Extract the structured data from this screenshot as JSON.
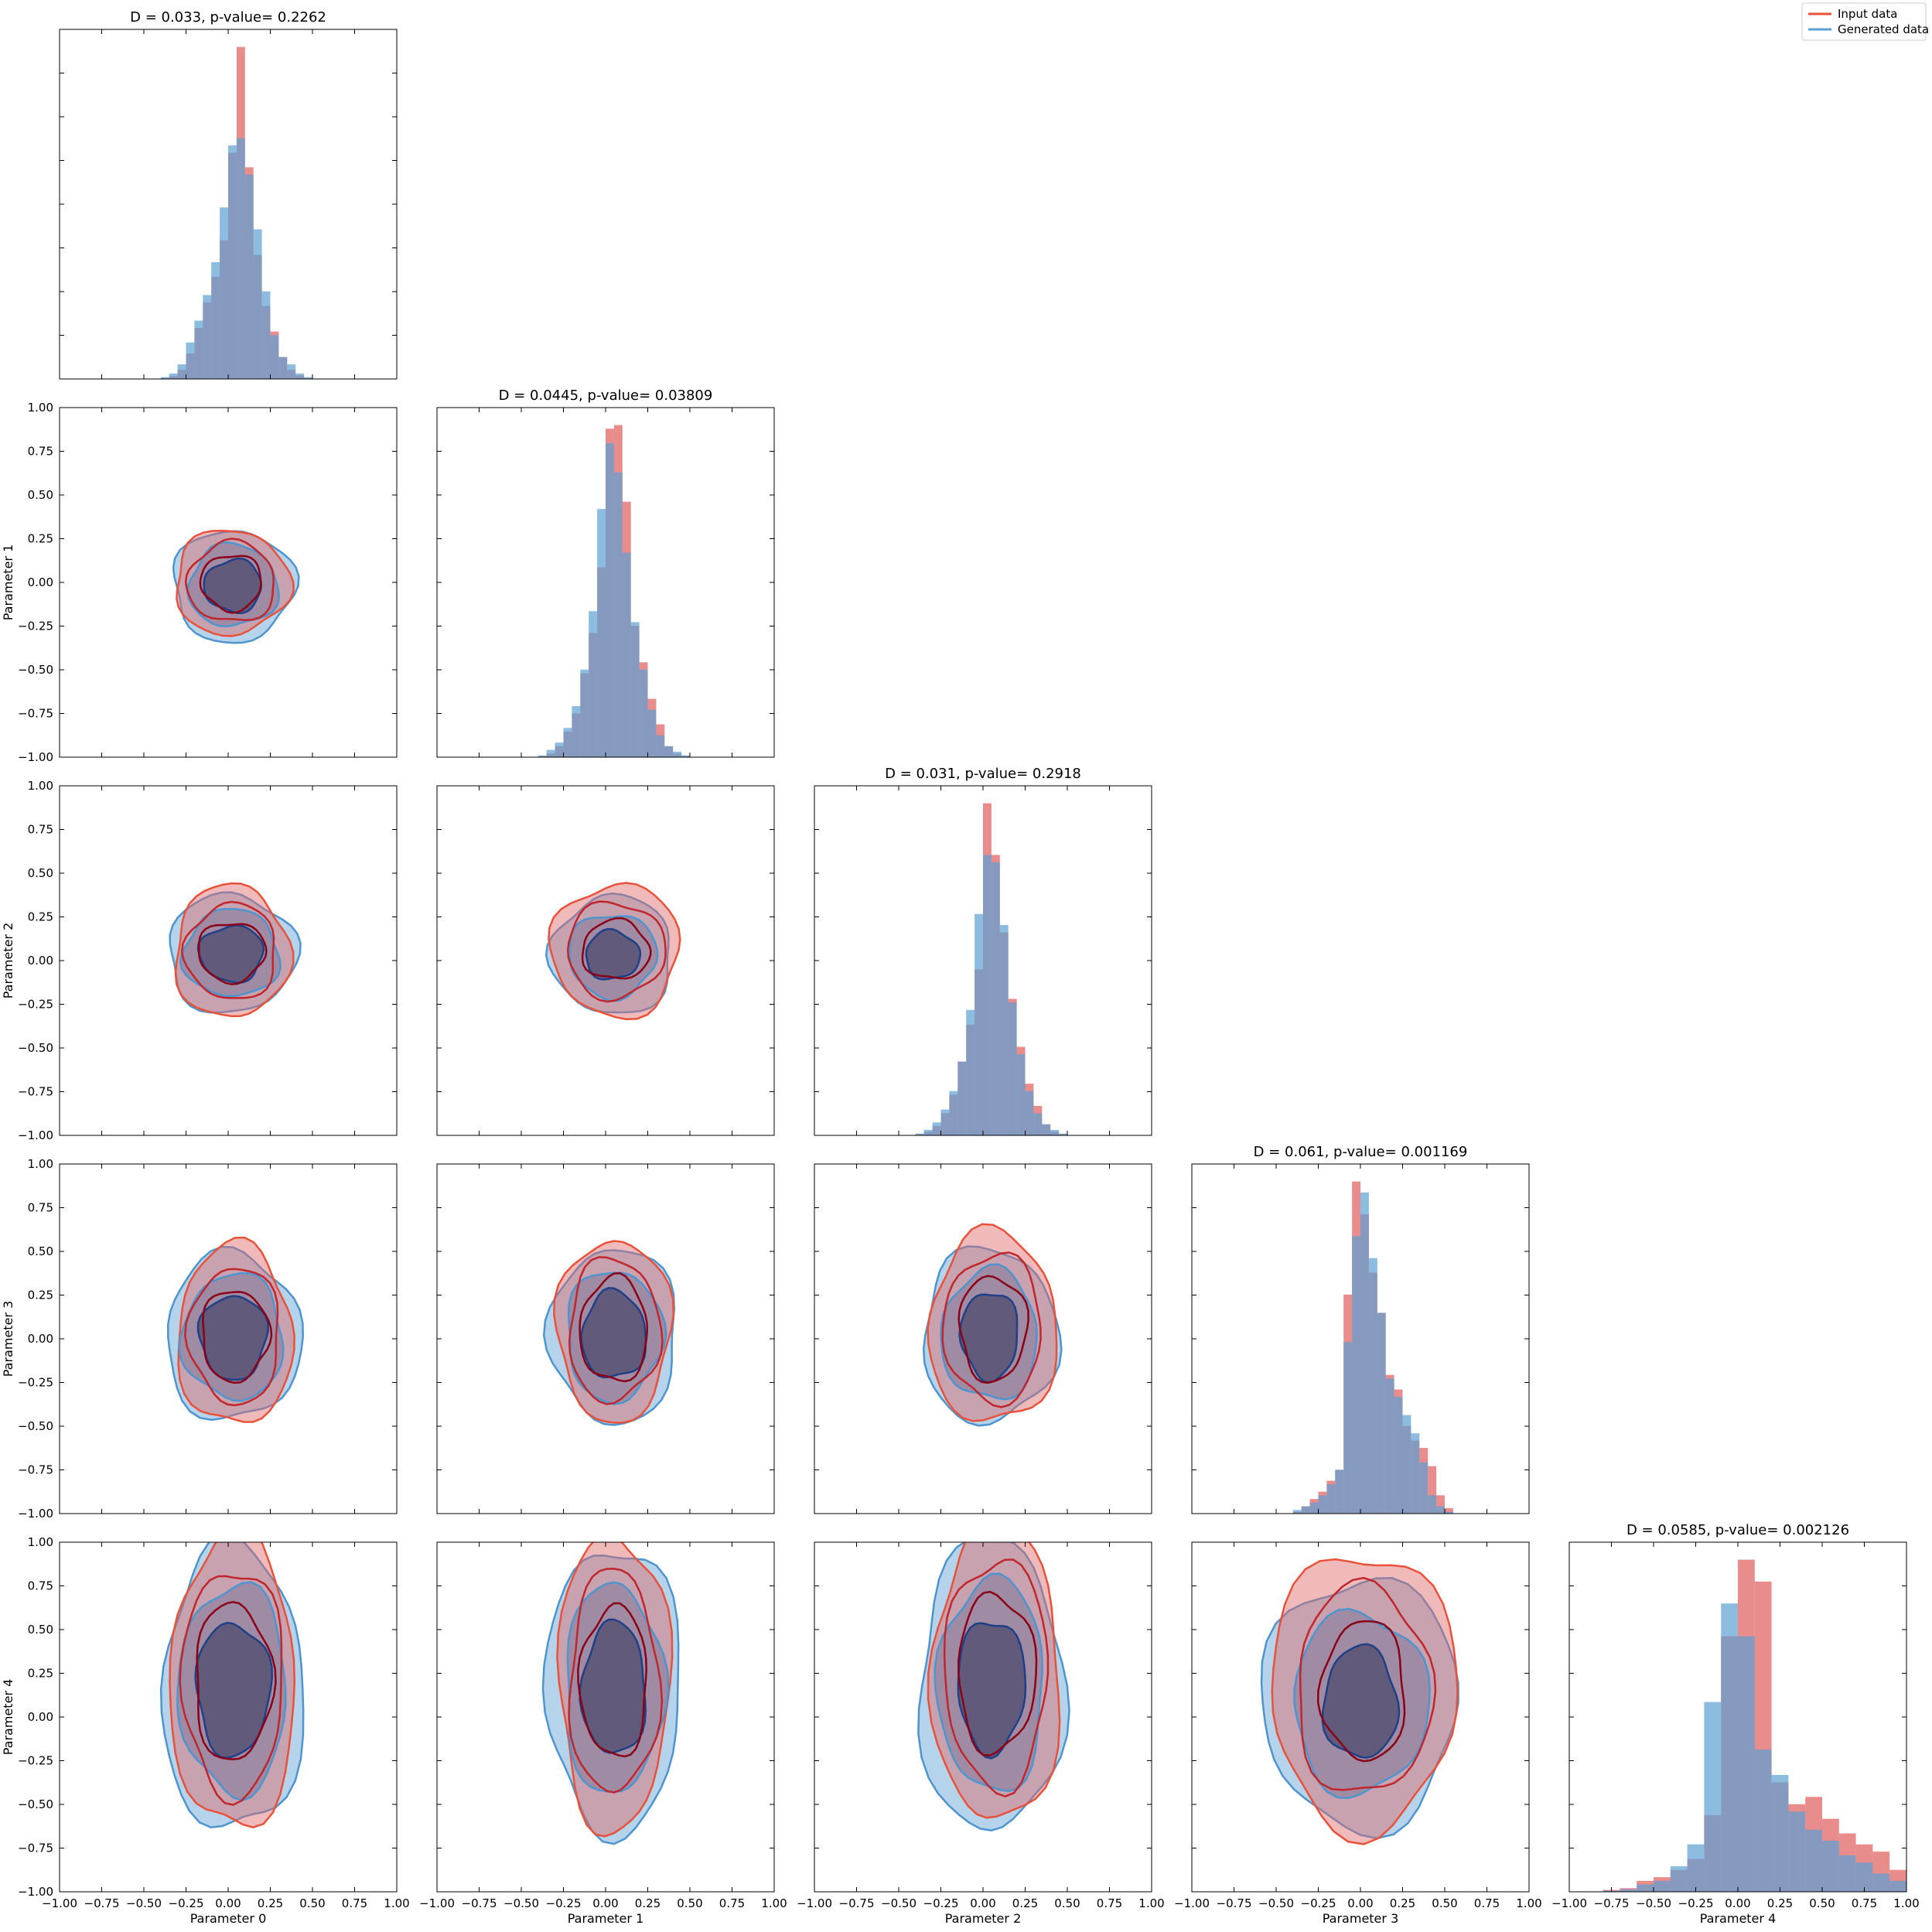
{
  "legend": {
    "placement": "top-right",
    "entries": [
      {
        "label": "Input data",
        "color": "#e8513a"
      },
      {
        "label": "Generated data",
        "color": "#5b9fd3"
      }
    ]
  },
  "colors": {
    "input_fill": "#e06666",
    "generated_fill": "#5b9fd3",
    "overlap_fill": "#847d9c",
    "input_inner_line": "#8b0016",
    "input_outer_line": "#e8513a",
    "generated_inner_line": "#1f3f87",
    "generated_outer_line": "#4e94cf"
  },
  "axes": {
    "range": [
      -1.0,
      1.0
    ],
    "ticks": [
      -1.0,
      -0.75,
      -0.5,
      -0.25,
      0.0,
      0.25,
      0.5,
      0.75,
      1.0
    ],
    "tick_labels": [
      "−1.00",
      "−0.75",
      "−0.50",
      "−0.25",
      "0.00",
      "0.25",
      "0.50",
      "0.75",
      "1.00"
    ],
    "x_labels": [
      "Parameter 0",
      "Parameter 1",
      "Parameter 2",
      "Parameter 3",
      "Parameter 4"
    ],
    "y_labels": [
      "Parameter 1",
      "Parameter 2",
      "Parameter 3",
      "Parameter 4"
    ]
  },
  "chart_data": {
    "type": "corner",
    "parameters": [
      "Parameter 0",
      "Parameter 1",
      "Parameter 2",
      "Parameter 3",
      "Parameter 4"
    ],
    "diagonal": [
      {
        "type": "bar",
        "title": "D = 0.033, p-value= 0.2262",
        "bin_edges": [
          -0.4,
          -0.35,
          -0.3,
          -0.25,
          -0.2,
          -0.15,
          -0.1,
          -0.05,
          0.0,
          0.05,
          0.1,
          0.15,
          0.2,
          0.25,
          0.3,
          0.35,
          0.4,
          0.45,
          0.5
        ],
        "series": [
          {
            "name": "Input data",
            "values": [
              0.3,
              0.8,
              2.5,
              7,
              14,
              21,
              28,
              38,
              62,
              91,
              58,
              34,
              20,
              13,
              6,
              2.5,
              1,
              0.3
            ]
          },
          {
            "name": "Generated data",
            "values": [
              0.5,
              1.5,
              4,
              10,
              16,
              23,
              32,
              47,
              64,
              66,
              56,
              41,
              24,
              12,
              6,
              4,
              1.5,
              0.5
            ]
          }
        ]
      },
      {
        "type": "bar",
        "title": "D = 0.0445, p-value= 0.03809",
        "bin_edges": [
          -0.4,
          -0.35,
          -0.3,
          -0.25,
          -0.2,
          -0.15,
          -0.1,
          -0.05,
          0.0,
          0.05,
          0.1,
          0.15,
          0.2,
          0.25,
          0.3,
          0.35,
          0.4,
          0.45,
          0.5
        ],
        "series": [
          {
            "name": "Input data",
            "values": [
              0.3,
              1,
              3,
              7,
              12,
              23,
              34,
              52,
              90,
              91,
              70,
              36,
              26,
              16,
              9,
              3,
              1,
              0.3
            ]
          },
          {
            "name": "Generated data",
            "values": [
              0.5,
              2,
              4,
              8,
              14,
              24,
              40,
              68,
              86,
              78,
              56,
              37,
              24,
              13,
              6,
              3,
              1.5,
              0.5
            ]
          }
        ]
      },
      {
        "type": "bar",
        "title": "D = 0.031, p-value= 0.2918",
        "bin_edges": [
          -0.4,
          -0.35,
          -0.3,
          -0.25,
          -0.2,
          -0.15,
          -0.1,
          -0.05,
          0.0,
          0.05,
          0.1,
          0.15,
          0.2,
          0.25,
          0.3,
          0.35,
          0.4,
          0.45,
          0.5
        ],
        "series": [
          {
            "name": "Input data",
            "values": [
              0.3,
              1,
              2.5,
              6,
              11,
              20,
              30,
              45,
              90,
              76,
              55,
              37,
              24,
              14,
              8,
              3,
              1,
              0.3
            ]
          },
          {
            "name": "Generated data",
            "values": [
              0.5,
              1.5,
              3.5,
              7,
              12,
              20,
              34,
              60,
              76,
              74,
              57,
              36,
              22,
              12,
              6,
              3,
              1.5,
              0.5
            ]
          }
        ]
      },
      {
        "type": "bar",
        "title": "D = 0.061, p-value= 0.001169",
        "bin_edges": [
          -0.4,
          -0.35,
          -0.3,
          -0.25,
          -0.2,
          -0.15,
          -0.1,
          -0.05,
          0.0,
          0.05,
          0.1,
          0.15,
          0.2,
          0.25,
          0.3,
          0.35,
          0.4,
          0.45,
          0.5,
          0.55
        ],
        "series": [
          {
            "name": "Input data",
            "values": [
              0.5,
              2,
              4,
              6,
              9,
              12,
              60,
              91,
              82,
              66,
              55,
              38,
              34,
              24,
              20,
              18,
              13,
              5,
              1.5
            ]
          },
          {
            "name": "Generated data",
            "values": [
              1,
              2,
              3,
              5,
              8,
              12,
              47,
              76,
              88,
              70,
              55,
              37,
              32,
              27,
              22,
              14,
              5,
              2,
              0.5
            ]
          }
        ]
      },
      {
        "type": "bar",
        "title": "D = 0.0585, p-value= 0.002126",
        "bin_edges": [
          -0.8,
          -0.7,
          -0.6,
          -0.5,
          -0.4,
          -0.3,
          -0.2,
          -0.1,
          0.0,
          0.1,
          0.2,
          0.3,
          0.4,
          0.5,
          0.6,
          0.7,
          0.8,
          0.9,
          1.0
        ],
        "series": [
          {
            "name": "Input data",
            "values": [
              0.5,
              1,
              3,
              4,
              6,
              9,
              21,
              70,
              91,
              85,
              30,
              24,
              26,
              20,
              16,
              13,
              11,
              6
            ]
          },
          {
            "name": "Generated data",
            "values": [
              0.3,
              0.7,
              2,
              3,
              7,
              13,
              52,
              79,
              70,
              39,
              32,
              22,
              17,
              14,
              10,
              8,
              5,
              3
            ]
          }
        ]
      }
    ],
    "off_diagonal": [
      {
        "x": 0,
        "y": 1,
        "input": {
          "center": [
            0.02,
            0.0
          ],
          "inner_spread": [
            0.18,
            0.16
          ],
          "outer_spread": [
            0.34,
            0.3
          ]
        },
        "generated": {
          "center": [
            0.03,
            -0.02
          ],
          "inner_spread": [
            0.17,
            0.15
          ],
          "outer_spread": [
            0.36,
            0.32
          ]
        }
      },
      {
        "x": 0,
        "y": 2,
        "input": {
          "center": [
            0.02,
            0.05
          ],
          "inner_spread": [
            0.2,
            0.17
          ],
          "outer_spread": [
            0.34,
            0.38
          ]
        },
        "generated": {
          "center": [
            0.02,
            0.04
          ],
          "inner_spread": [
            0.19,
            0.16
          ],
          "outer_spread": [
            0.38,
            0.34
          ]
        }
      },
      {
        "x": 0,
        "y": 3,
        "input": {
          "center": [
            0.04,
            0.02
          ],
          "inner_spread": [
            0.2,
            0.26
          ],
          "outer_spread": [
            0.34,
            0.52
          ]
        },
        "generated": {
          "center": [
            0.03,
            0.01
          ],
          "inner_spread": [
            0.2,
            0.24
          ],
          "outer_spread": [
            0.4,
            0.48
          ]
        }
      },
      {
        "x": 0,
        "y": 4,
        "input": {
          "center": [
            0.03,
            0.2
          ],
          "inner_spread": [
            0.23,
            0.45
          ],
          "outer_spread": [
            0.37,
            0.85
          ]
        },
        "generated": {
          "center": [
            0.03,
            0.16
          ],
          "inner_spread": [
            0.22,
            0.38
          ],
          "outer_spread": [
            0.42,
            0.82
          ]
        }
      },
      {
        "x": 1,
        "y": 2,
        "input": {
          "center": [
            0.06,
            0.06
          ],
          "inner_spread": [
            0.2,
            0.17
          ],
          "outer_spread": [
            0.38,
            0.38
          ]
        },
        "generated": {
          "center": [
            0.04,
            0.03
          ],
          "inner_spread": [
            0.16,
            0.14
          ],
          "outer_spread": [
            0.36,
            0.34
          ]
        }
      },
      {
        "x": 1,
        "y": 3,
        "input": {
          "center": [
            0.05,
            0.05
          ],
          "inner_spread": [
            0.2,
            0.3
          ],
          "outer_spread": [
            0.34,
            0.52
          ]
        },
        "generated": {
          "center": [
            0.05,
            0.02
          ],
          "inner_spread": [
            0.19,
            0.25
          ],
          "outer_spread": [
            0.38,
            0.5
          ]
        }
      },
      {
        "x": 1,
        "y": 4,
        "input": {
          "center": [
            0.05,
            0.2
          ],
          "inner_spread": [
            0.2,
            0.43
          ],
          "outer_spread": [
            0.33,
            0.85
          ]
        },
        "generated": {
          "center": [
            0.05,
            0.16
          ],
          "inner_spread": [
            0.19,
            0.38
          ],
          "outer_spread": [
            0.4,
            0.82
          ]
        }
      },
      {
        "x": 2,
        "y": 3,
        "input": {
          "center": [
            0.06,
            0.06
          ],
          "inner_spread": [
            0.2,
            0.3
          ],
          "outer_spread": [
            0.38,
            0.55
          ]
        },
        "generated": {
          "center": [
            0.04,
            0.02
          ],
          "inner_spread": [
            0.17,
            0.25
          ],
          "outer_spread": [
            0.4,
            0.5
          ]
        }
      },
      {
        "x": 2,
        "y": 4,
        "input": {
          "center": [
            0.08,
            0.25
          ],
          "inner_spread": [
            0.23,
            0.45
          ],
          "outer_spread": [
            0.38,
            0.86
          ]
        },
        "generated": {
          "center": [
            0.05,
            0.18
          ],
          "inner_spread": [
            0.2,
            0.38
          ],
          "outer_spread": [
            0.43,
            0.84
          ]
        }
      },
      {
        "x": 3,
        "y": 4,
        "input": {
          "center": [
            0.02,
            0.15
          ],
          "inner_spread": [
            0.25,
            0.4
          ],
          "outer_spread": [
            0.55,
            0.8
          ]
        },
        "generated": {
          "center": [
            0.0,
            0.08
          ],
          "inner_spread": [
            0.22,
            0.32
          ],
          "outer_spread": [
            0.58,
            0.72
          ]
        }
      }
    ]
  }
}
